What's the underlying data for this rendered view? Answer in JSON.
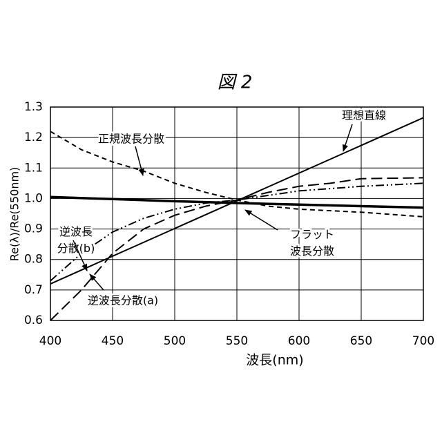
{
  "chart_data": {
    "type": "line",
    "title": "図 2",
    "x_label": "波長(nm)",
    "y_label": "Re(λ)/Re(550nm)",
    "xlim": [
      400,
      700
    ],
    "ylim": [
      0.6,
      1.3
    ],
    "xticks": [
      400,
      450,
      500,
      550,
      600,
      650,
      700
    ],
    "yticks": [
      0.6,
      0.7,
      0.8,
      0.9,
      {
        "value": 1,
        "label": "1.0"
      },
      1.1,
      1.2,
      1.3
    ],
    "grid": true,
    "series": [
      {
        "name": "理想直線",
        "color": "#000000",
        "dash": "solid",
        "width": 2,
        "x": [
          400,
          700
        ],
        "values": [
          0.72,
          1.265
        ]
      },
      {
        "name": "フラット\n波長分散",
        "color": "#000000",
        "dash": "solid",
        "width": 3.5,
        "x": [
          400,
          450,
          500,
          550,
          600,
          650,
          700
        ],
        "values": [
          1.005,
          0.998,
          0.991,
          0.985,
          0.98,
          0.975,
          0.97
        ]
      },
      {
        "name": "正規波長分散",
        "color": "#000000",
        "dash": "dashed",
        "width": 2,
        "x": [
          400,
          425,
          450,
          475,
          500,
          525,
          550,
          575,
          600,
          650,
          700
        ],
        "values": [
          1.22,
          1.16,
          1.12,
          1.09,
          1.05,
          1.02,
          0.995,
          0.975,
          0.965,
          0.955,
          0.94
        ]
      },
      {
        "name": "逆波長\n分散(b)",
        "color": "#000000",
        "dash": "dash-dot-dot",
        "width": 2,
        "x": [
          400,
          425,
          450,
          475,
          500,
          525,
          550,
          575,
          600,
          650,
          700
        ],
        "values": [
          0.73,
          0.82,
          0.89,
          0.935,
          0.965,
          0.985,
          0.995,
          1.01,
          1.025,
          1.04,
          1.05
        ]
      },
      {
        "name": "逆波長分散(a)",
        "color": "#000000",
        "dash": "long-dash",
        "width": 2,
        "x": [
          400,
          425,
          450,
          475,
          500,
          525,
          550,
          575,
          600,
          625,
          650,
          700
        ],
        "values": [
          0.6,
          0.7,
          0.82,
          0.9,
          0.945,
          0.975,
          0.995,
          1.02,
          1.04,
          1.05,
          1.065,
          1.068
        ]
      }
    ]
  }
}
